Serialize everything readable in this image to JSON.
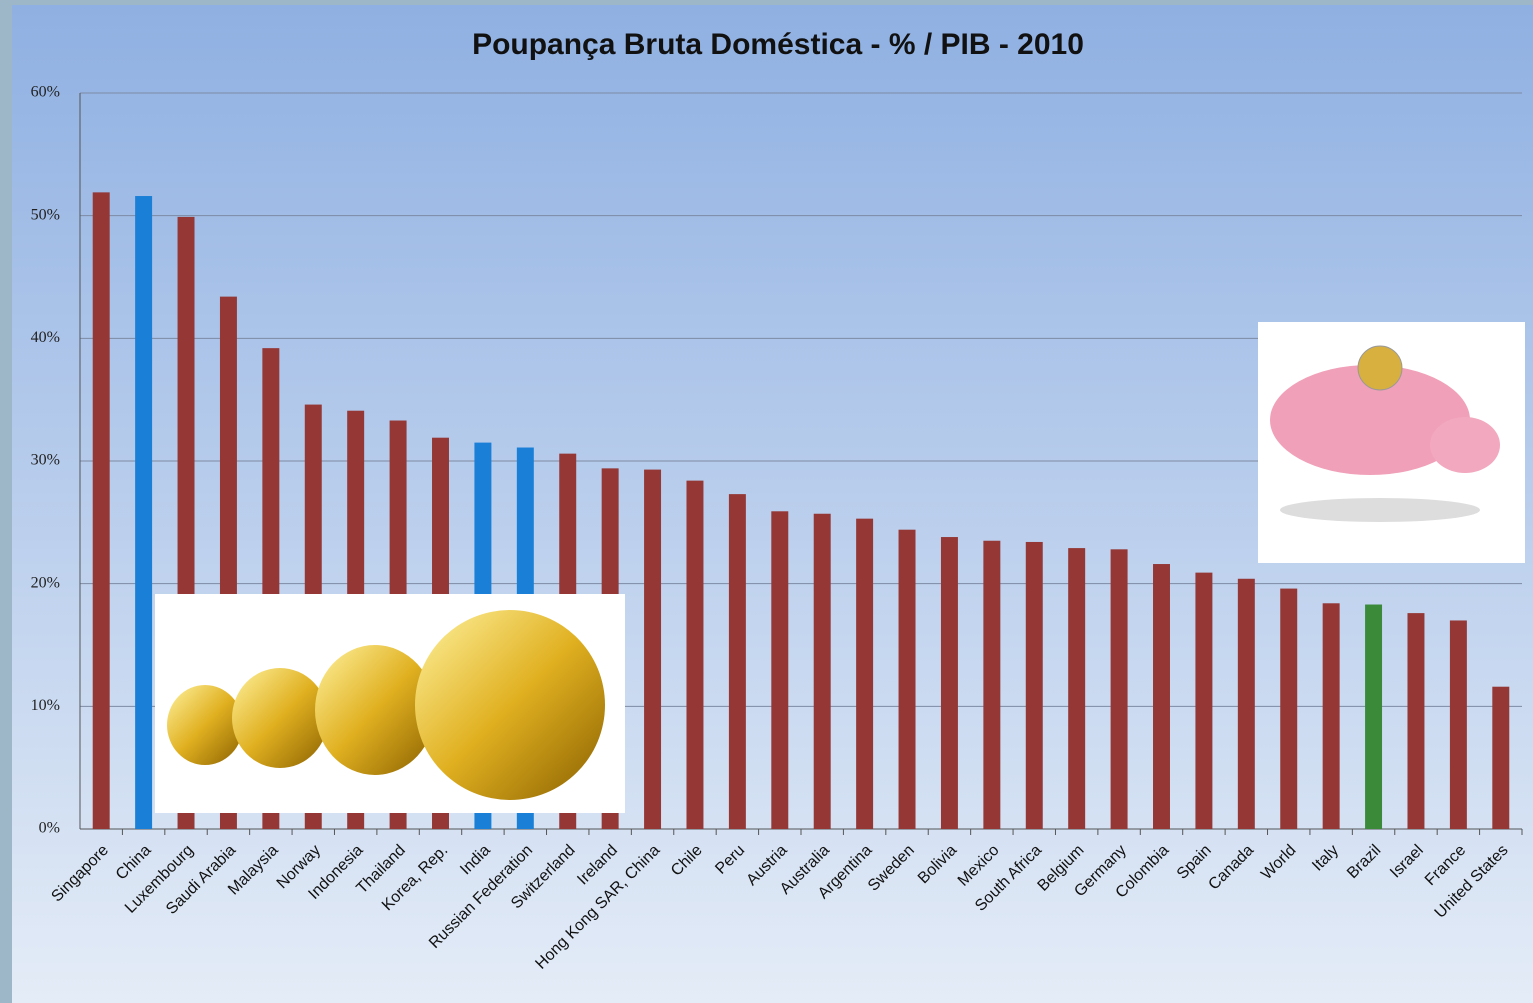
{
  "chart_data": {
    "type": "bar",
    "title": "Poupança Bruta Doméstica - % / PIB - 2010",
    "categories": [
      "Singapore",
      "China",
      "Luxembourg",
      "Saudi Arabia",
      "Malaysia",
      "Norway",
      "Indonesia",
      "Thailand",
      "Korea, Rep.",
      "India",
      "Russian Federation",
      "Switzerland",
      "Ireland",
      "Hong Kong SAR, China",
      "Chile",
      "Peru",
      "Austria",
      "Australia",
      "Argentina",
      "Sweden",
      "Bolivia",
      "Mexico",
      "South Africa",
      "Belgium",
      "Germany",
      "Colombia",
      "Spain",
      "Canada",
      "World",
      "Italy",
      "Brazil",
      "Israel",
      "France",
      "United States"
    ],
    "values": [
      51.9,
      51.6,
      49.9,
      43.4,
      39.2,
      34.6,
      34.1,
      33.3,
      31.9,
      31.5,
      31.1,
      30.6,
      29.4,
      29.3,
      28.4,
      27.3,
      25.9,
      25.7,
      25.3,
      24.4,
      23.8,
      23.5,
      23.4,
      22.9,
      22.8,
      21.6,
      20.9,
      20.4,
      19.6,
      18.4,
      18.3,
      17.6,
      17.0,
      11.6
    ],
    "colors": [
      "#953735",
      "#1a7fd6",
      "#953735",
      "#953735",
      "#953735",
      "#953735",
      "#953735",
      "#953735",
      "#953735",
      "#1a7fd6",
      "#1a7fd6",
      "#953735",
      "#953735",
      "#953735",
      "#953735",
      "#953735",
      "#953735",
      "#953735",
      "#953735",
      "#953735",
      "#953735",
      "#953735",
      "#953735",
      "#953735",
      "#953735",
      "#953735",
      "#953735",
      "#953735",
      "#953735",
      "#953735",
      "#3a8a3a",
      "#953735",
      "#953735",
      "#953735"
    ],
    "ylim": [
      0,
      60
    ],
    "yticks": [
      {
        "value": 0,
        "label": "0%"
      },
      {
        "value": 10,
        "label": "10%"
      },
      {
        "value": 20,
        "label": "20%"
      },
      {
        "value": 30,
        "label": "30%"
      },
      {
        "value": 40,
        "label": "40%"
      },
      {
        "value": 50,
        "label": "50%"
      },
      {
        "value": 60,
        "label": "60%"
      }
    ],
    "grid": true
  }
}
